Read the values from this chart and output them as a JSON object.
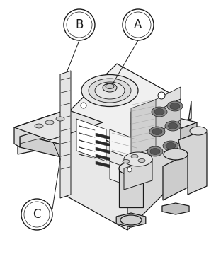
{
  "bg_color": "#ffffff",
  "lc": "#1a1a1a",
  "lw": 0.9,
  "label_A": "A",
  "label_B": "B",
  "label_C": "C",
  "label_fs": 12,
  "fig_w": 3.05,
  "fig_h": 3.83
}
